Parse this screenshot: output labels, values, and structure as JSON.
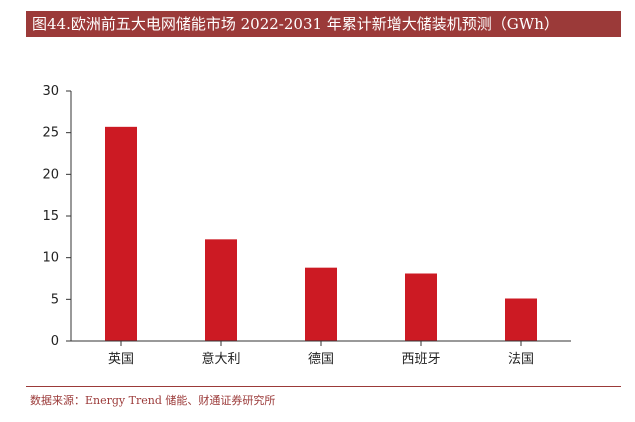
{
  "title": "图44.欧洲前五大电网储能市场 2022-2031 年累计新增大储装机预测（GWh）",
  "source": "数据来源：Energy Trend 储能、财通证券研究所",
  "colors": {
    "bar": "#cc1a23",
    "title_bg": "#9b3a39"
  },
  "chart_data": {
    "type": "bar",
    "title": "欧洲前五大电网储能市场 2022-2031 年累计新增大储装机预测（GWh）",
    "categories": [
      "英国",
      "意大利",
      "德国",
      "西班牙",
      "法国"
    ],
    "values": [
      25.7,
      12.2,
      8.8,
      8.1,
      5.1
    ],
    "xlabel": "",
    "ylabel": "",
    "ylim": [
      0,
      30
    ],
    "yticks": [
      0,
      5,
      10,
      15,
      20,
      25,
      30
    ],
    "grid": false,
    "legend": "none"
  }
}
